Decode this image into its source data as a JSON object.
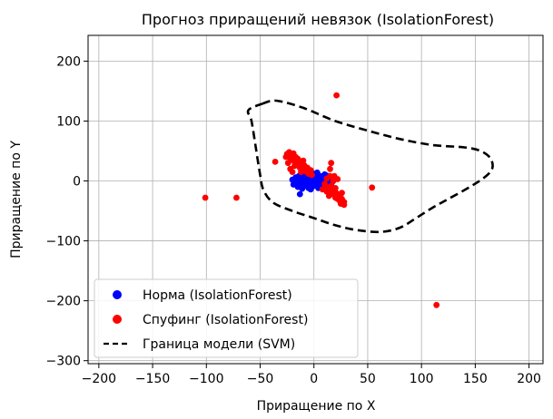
{
  "chart_data": {
    "type": "scatter",
    "title": "Прогноз приращений невязок (IsolationForest)",
    "xlabel": "Приращение по X",
    "ylabel": "Приращение по Y",
    "xlim": [
      -210,
      213
    ],
    "ylim": [
      -305,
      243
    ],
    "xticks": [
      -200,
      -150,
      -100,
      -50,
      0,
      50,
      100,
      150,
      200
    ],
    "yticks": [
      200,
      100,
      0,
      -100,
      -200,
      -300
    ],
    "xtick_labels": [
      "−200",
      "−150",
      "−100",
      "−50",
      "0",
      "50",
      "100",
      "150",
      "200"
    ],
    "ytick_labels": [
      "200",
      "100",
      "0",
      "−100",
      "−200",
      "−300"
    ],
    "grid": true,
    "legend_position": "lower-left",
    "series": [
      {
        "name": "Норма (IsolationForest)",
        "color": "#0000ff",
        "points": [
          [
            -18,
            -4
          ],
          [
            -16,
            -2
          ],
          [
            -14,
            3
          ],
          [
            -13,
            -6
          ],
          [
            -12,
            0
          ],
          [
            -11,
            5
          ],
          [
            -10,
            -3
          ],
          [
            -9,
            8
          ],
          [
            -8,
            -8
          ],
          [
            -7,
            2
          ],
          [
            -6,
            -5
          ],
          [
            -5,
            6
          ],
          [
            -4,
            -1
          ],
          [
            -3,
            9
          ],
          [
            -2,
            -7
          ],
          [
            -1,
            3
          ],
          [
            0,
            -2
          ],
          [
            1,
            7
          ],
          [
            2,
            -6
          ],
          [
            3,
            1
          ],
          [
            4,
            10
          ],
          [
            5,
            -4
          ],
          [
            6,
            4
          ],
          [
            7,
            -1
          ],
          [
            8,
            8
          ],
          [
            9,
            -5
          ],
          [
            10,
            2
          ],
          [
            11,
            6
          ],
          [
            12,
            -3
          ],
          [
            13,
            4
          ],
          [
            14,
            0
          ],
          [
            15,
            5
          ],
          [
            16,
            2
          ],
          [
            17,
            -2
          ],
          [
            -15,
            -10
          ],
          [
            -10,
            10
          ],
          [
            -5,
            -12
          ],
          [
            0,
            12
          ],
          [
            5,
            -10
          ],
          [
            10,
            11
          ],
          [
            -20,
            2
          ],
          [
            -19,
            -6
          ],
          [
            -17,
            6
          ],
          [
            -3,
            -14
          ],
          [
            3,
            14
          ],
          [
            -8,
            13
          ],
          [
            8,
            -9
          ],
          [
            -12,
            -9
          ],
          [
            12,
            9
          ],
          [
            -14,
            8
          ],
          [
            2,
            4
          ],
          [
            -2,
            1
          ],
          [
            6,
            -7
          ],
          [
            -6,
            7
          ],
          [
            -11,
            -13
          ],
          [
            -13,
            -22
          ],
          [
            -4,
            -8
          ],
          [
            4,
            -12
          ],
          [
            18,
            3
          ],
          [
            -1,
            -9
          ]
        ]
      },
      {
        "name": "Спуфинг (IsolationForest)",
        "color": "#ff0000",
        "points": [
          [
            -25,
            45
          ],
          [
            -23,
            48
          ],
          [
            -21,
            42
          ],
          [
            -19,
            46
          ],
          [
            -17,
            40
          ],
          [
            -22,
            38
          ],
          [
            -20,
            35
          ],
          [
            -18,
            32
          ],
          [
            -15,
            37
          ],
          [
            -16,
            28
          ],
          [
            -14,
            30
          ],
          [
            -12,
            25
          ],
          [
            -10,
            34
          ],
          [
            -13,
            22
          ],
          [
            -11,
            18
          ],
          [
            -9,
            26
          ],
          [
            -8,
            20
          ],
          [
            -7,
            15
          ],
          [
            -6,
            22
          ],
          [
            -24,
            30
          ],
          [
            -26,
            40
          ],
          [
            -18,
            25
          ],
          [
            -12,
            15
          ],
          [
            -20,
            15
          ],
          [
            -22,
            20
          ],
          [
            -36,
            32
          ],
          [
            -5,
            12
          ],
          [
            -3,
            18
          ],
          [
            -2,
            10
          ],
          [
            10,
            -5
          ],
          [
            12,
            -10
          ],
          [
            14,
            -15
          ],
          [
            16,
            -8
          ],
          [
            18,
            -20
          ],
          [
            20,
            -18
          ],
          [
            22,
            -25
          ],
          [
            24,
            -22
          ],
          [
            26,
            -30
          ],
          [
            28,
            -35
          ],
          [
            28,
            -40
          ],
          [
            25,
            -38
          ],
          [
            22,
            -30
          ],
          [
            20,
            -28
          ],
          [
            18,
            -15
          ],
          [
            16,
            -22
          ],
          [
            14,
            -25
          ],
          [
            12,
            -18
          ],
          [
            10,
            -12
          ],
          [
            8,
            -14
          ],
          [
            15,
            8
          ],
          [
            18,
            0
          ],
          [
            20,
            -12
          ],
          [
            23,
            -30
          ],
          [
            15,
            20
          ],
          [
            16,
            30
          ],
          [
            22,
            3
          ],
          [
            12,
            4
          ],
          [
            19,
            8
          ],
          [
            26,
            -20
          ],
          [
            24,
            -33
          ],
          [
            21,
            143
          ],
          [
            -101,
            -28
          ],
          [
            -72,
            -28
          ],
          [
            54,
            -11
          ],
          [
            114,
            -207
          ]
        ]
      }
    ],
    "boundary": {
      "name": "Граница модели (SVM)",
      "color": "#000000",
      "style": "dashed",
      "path": [
        [
          -48,
          129
        ],
        [
          -35,
          134
        ],
        [
          -10,
          122
        ],
        [
          20,
          100
        ],
        [
          50,
          84
        ],
        [
          80,
          70
        ],
        [
          110,
          60
        ],
        [
          140,
          56
        ],
        [
          155,
          50
        ],
        [
          164,
          38
        ],
        [
          166,
          22
        ],
        [
          160,
          8
        ],
        [
          145,
          -10
        ],
        [
          125,
          -30
        ],
        [
          110,
          -45
        ],
        [
          95,
          -62
        ],
        [
          80,
          -78
        ],
        [
          62,
          -85
        ],
        [
          40,
          -82
        ],
        [
          20,
          -74
        ],
        [
          0,
          -62
        ],
        [
          -20,
          -50
        ],
        [
          -38,
          -36
        ],
        [
          -47,
          -15
        ],
        [
          -50,
          10
        ],
        [
          -54,
          55
        ],
        [
          -58,
          100
        ],
        [
          -61,
          118
        ],
        [
          -48,
          129
        ]
      ]
    }
  },
  "legend": {
    "items": [
      {
        "label": "Норма (IsolationForest)",
        "marker": "dot",
        "color": "#0000ff"
      },
      {
        "label": "Спуфинг (IsolationForest)",
        "marker": "dot",
        "color": "#ff0000"
      },
      {
        "label": "Граница модели (SVM)",
        "marker": "dashed-line",
        "color": "#000000"
      }
    ]
  }
}
